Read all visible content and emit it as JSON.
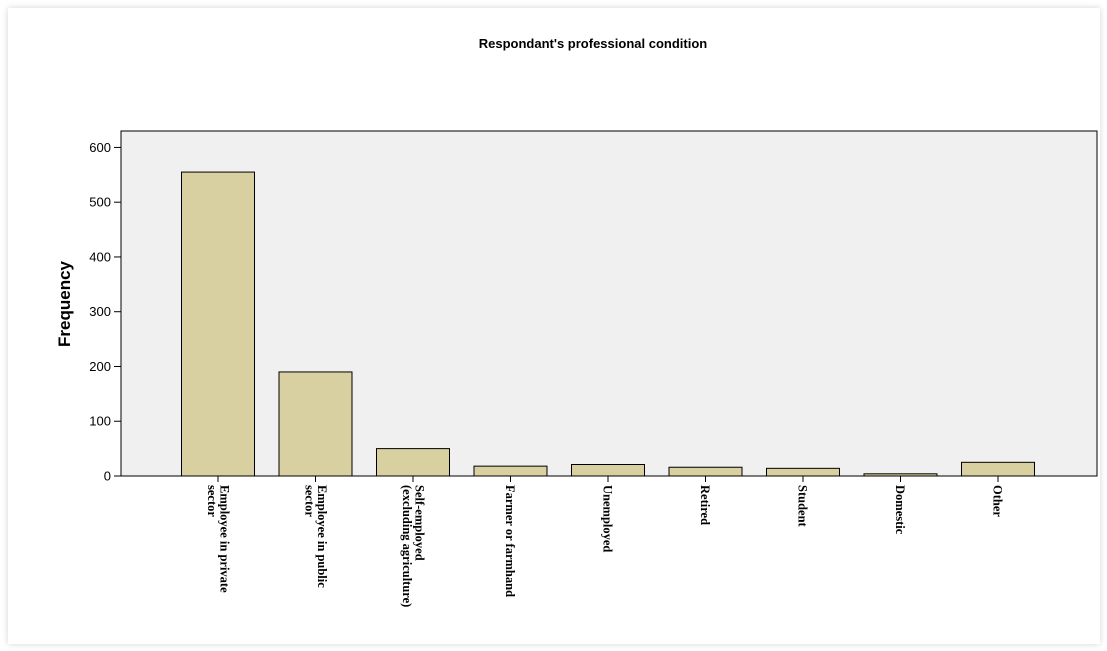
{
  "chart_data": {
    "type": "bar",
    "title": "Respondant's professional condition",
    "xlabel": "",
    "ylabel": "Frequency",
    "ylim": [
      0,
      630
    ],
    "yticks": [
      0,
      100,
      200,
      300,
      400,
      500,
      600
    ],
    "grid": false,
    "legend": "none",
    "colors": {
      "bar": "#d8d0a0",
      "plot_bg": "#f0f0f0",
      "stroke": "#000000"
    },
    "categories": [
      [
        "Employee in private",
        "sector"
      ],
      [
        "Employee in public",
        "sector"
      ],
      [
        "Self-employed",
        "(excluding agriculture)"
      ],
      [
        "Farmer or farmhand"
      ],
      [
        "Unemployed"
      ],
      [
        "Retired"
      ],
      [
        "Student"
      ],
      [
        "Domestic"
      ],
      [
        "Other"
      ]
    ],
    "values": [
      555,
      190,
      50,
      18,
      21,
      16,
      14,
      4,
      25
    ]
  }
}
